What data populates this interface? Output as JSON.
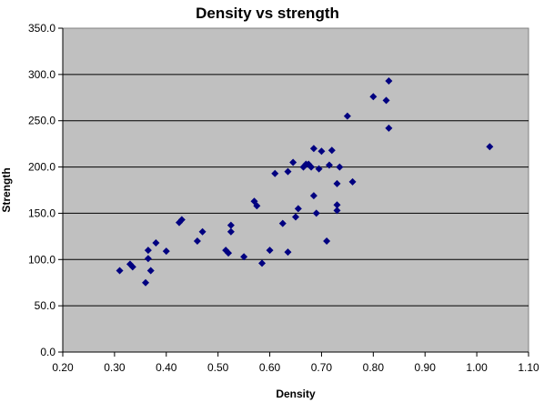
{
  "chart_data": {
    "type": "scatter",
    "title": "Density vs strength",
    "xlabel": "Density",
    "ylabel": "Strength",
    "xlim": [
      0.2,
      1.1
    ],
    "ylim": [
      0,
      350
    ],
    "x_ticks": [
      "0.20",
      "0.30",
      "0.40",
      "0.50",
      "0.60",
      "0.70",
      "0.80",
      "0.90",
      "1.00",
      "1.10"
    ],
    "y_ticks": [
      "0.0",
      "50.0",
      "100.0",
      "150.0",
      "200.0",
      "250.0",
      "300.0",
      "350.0"
    ],
    "grid": "horizontal",
    "plot_background": "#C0C0C0",
    "marker_color": "#000080",
    "points": [
      [
        0.31,
        88
      ],
      [
        0.33,
        95
      ],
      [
        0.335,
        92
      ],
      [
        0.36,
        75
      ],
      [
        0.365,
        101
      ],
      [
        0.365,
        110
      ],
      [
        0.37,
        88
      ],
      [
        0.38,
        118
      ],
      [
        0.4,
        109
      ],
      [
        0.425,
        140
      ],
      [
        0.43,
        143
      ],
      [
        0.46,
        120
      ],
      [
        0.47,
        130
      ],
      [
        0.515,
        110
      ],
      [
        0.52,
        107
      ],
      [
        0.525,
        130
      ],
      [
        0.525,
        137
      ],
      [
        0.55,
        103
      ],
      [
        0.57,
        163
      ],
      [
        0.575,
        158
      ],
      [
        0.585,
        96
      ],
      [
        0.6,
        110
      ],
      [
        0.61,
        193
      ],
      [
        0.625,
        139
      ],
      [
        0.635,
        195
      ],
      [
        0.635,
        108
      ],
      [
        0.645,
        205
      ],
      [
        0.65,
        146
      ],
      [
        0.655,
        155
      ],
      [
        0.665,
        200
      ],
      [
        0.67,
        203
      ],
      [
        0.675,
        203
      ],
      [
        0.68,
        200
      ],
      [
        0.685,
        169
      ],
      [
        0.685,
        220
      ],
      [
        0.69,
        150
      ],
      [
        0.695,
        198
      ],
      [
        0.7,
        217
      ],
      [
        0.71,
        120
      ],
      [
        0.715,
        202
      ],
      [
        0.72,
        218
      ],
      [
        0.73,
        182
      ],
      [
        0.73,
        153
      ],
      [
        0.73,
        159
      ],
      [
        0.735,
        200
      ],
      [
        0.75,
        255
      ],
      [
        0.76,
        184
      ],
      [
        0.8,
        276
      ],
      [
        0.825,
        272
      ],
      [
        0.83,
        293
      ],
      [
        0.83,
        242
      ],
      [
        1.025,
        222
      ]
    ]
  }
}
